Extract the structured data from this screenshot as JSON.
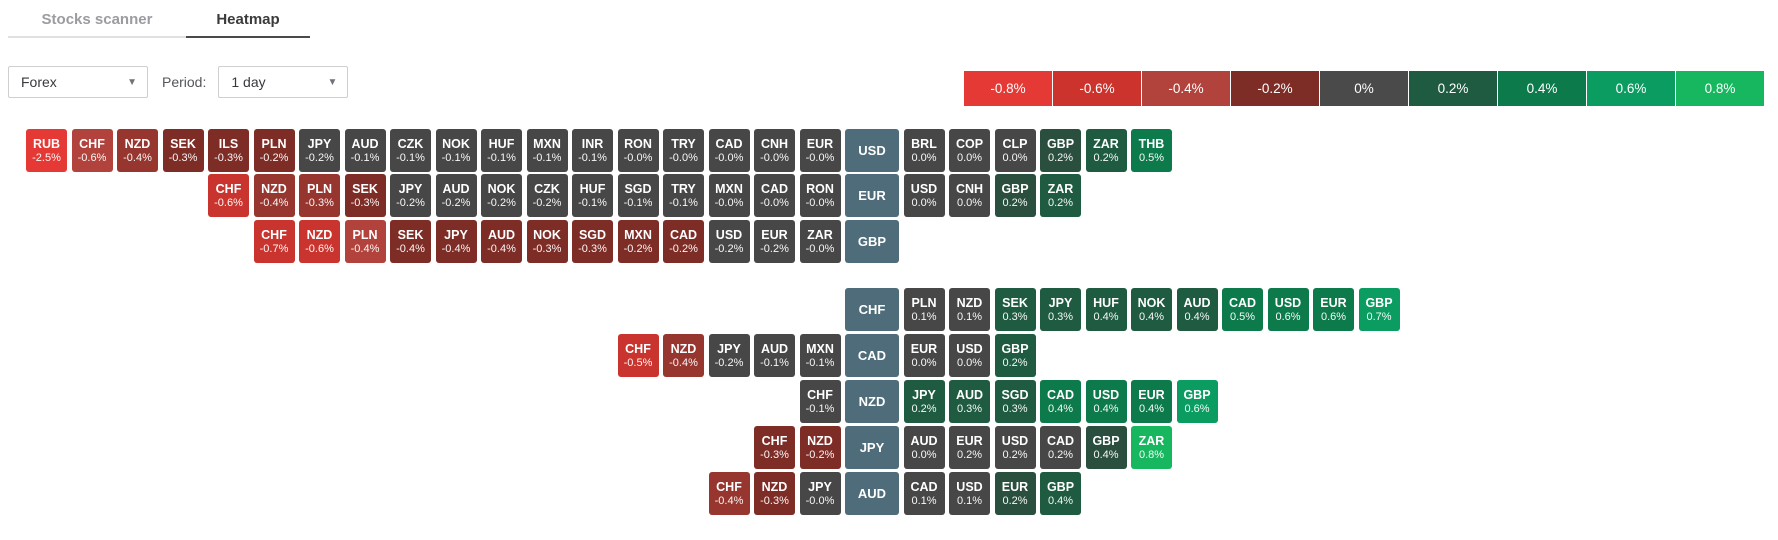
{
  "header": {
    "tabs": [
      {
        "label": "Stocks scanner",
        "active": false
      },
      {
        "label": "Heatmap",
        "active": true
      }
    ]
  },
  "controls": {
    "market_dropdown": {
      "value": "Forex"
    },
    "period_label": "Period:",
    "period_dropdown": {
      "value": "1 day"
    }
  },
  "legend": {
    "items": [
      {
        "label": "-0.8%",
        "color": "#e53935"
      },
      {
        "label": "-0.6%",
        "color": "#cb332c"
      },
      {
        "label": "-0.4%",
        "color": "#b2433c"
      },
      {
        "label": "-0.2%",
        "color": "#7e2c26"
      },
      {
        "label": "0%",
        "color": "#4a4a4a"
      },
      {
        "label": "0.2%",
        "color": "#1e5b41"
      },
      {
        "label": "0.4%",
        "color": "#0c7a4b"
      },
      {
        "label": "0.6%",
        "color": "#0a9c61"
      },
      {
        "label": "0.8%",
        "color": "#16b75e"
      }
    ]
  },
  "heatmap": {
    "base_cell_color": "#4e6c7a",
    "palette": {
      "r4": "#e53935",
      "r3": "#c9352e",
      "r2b": "#b2433c",
      "r2": "#96362f",
      "r1": "#7e2c26",
      "n": "#474747",
      "g1": "#2b4f3e",
      "g2": "#1e5b41",
      "g3": "#0c7a4b",
      "g4": "#0a9c61",
      "g5": "#16b75e"
    },
    "rows": [
      {
        "base": "USD",
        "cells": [
          [
            "RUB",
            "-2.5%",
            "r4"
          ],
          [
            "CHF",
            "-0.6%",
            "r2b"
          ],
          [
            "NZD",
            "-0.4%",
            "r2"
          ],
          [
            "SEK",
            "-0.3%",
            "r1"
          ],
          [
            "ILS",
            "-0.3%",
            "r1"
          ],
          [
            "PLN",
            "-0.2%",
            "r1"
          ],
          [
            "JPY",
            "-0.2%",
            "n"
          ],
          [
            "AUD",
            "-0.1%",
            "n"
          ],
          [
            "CZK",
            "-0.1%",
            "n"
          ],
          [
            "NOK",
            "-0.1%",
            "n"
          ],
          [
            "HUF",
            "-0.1%",
            "n"
          ],
          [
            "MXN",
            "-0.1%",
            "n"
          ],
          [
            "INR",
            "-0.1%",
            "n"
          ],
          [
            "RON",
            "-0.0%",
            "n"
          ],
          [
            "TRY",
            "-0.0%",
            "n"
          ],
          [
            "CAD",
            "-0.0%",
            "n"
          ],
          [
            "CNH",
            "-0.0%",
            "n"
          ],
          [
            "EUR",
            "-0.0%",
            "n"
          ],
          [
            "USD",
            "",
            "base"
          ],
          [
            "BRL",
            "0.0%",
            "n"
          ],
          [
            "COP",
            "0.0%",
            "n"
          ],
          [
            "CLP",
            "0.0%",
            "n"
          ],
          [
            "GBP",
            "0.2%",
            "g1"
          ],
          [
            "ZAR",
            "0.2%",
            "g2"
          ],
          [
            "THB",
            "0.5%",
            "g3"
          ]
        ]
      },
      {
        "base": "EUR",
        "cells": [
          [
            "CHF",
            "-0.6%",
            "r3"
          ],
          [
            "NZD",
            "-0.4%",
            "r2"
          ],
          [
            "PLN",
            "-0.3%",
            "r2"
          ],
          [
            "SEK",
            "-0.3%",
            "r1"
          ],
          [
            "JPY",
            "-0.2%",
            "n"
          ],
          [
            "AUD",
            "-0.2%",
            "n"
          ],
          [
            "NOK",
            "-0.2%",
            "n"
          ],
          [
            "CZK",
            "-0.2%",
            "n"
          ],
          [
            "HUF",
            "-0.1%",
            "n"
          ],
          [
            "SGD",
            "-0.1%",
            "n"
          ],
          [
            "TRY",
            "-0.1%",
            "n"
          ],
          [
            "MXN",
            "-0.0%",
            "n"
          ],
          [
            "CAD",
            "-0.0%",
            "n"
          ],
          [
            "RON",
            "-0.0%",
            "n"
          ],
          [
            "EUR",
            "",
            "base"
          ],
          [
            "USD",
            "0.0%",
            "n"
          ],
          [
            "CNH",
            "0.0%",
            "n"
          ],
          [
            "GBP",
            "0.2%",
            "g1"
          ],
          [
            "ZAR",
            "0.2%",
            "g2"
          ]
        ]
      },
      {
        "base": "GBP",
        "cells": [
          [
            "CHF",
            "-0.7%",
            "r3"
          ],
          [
            "NZD",
            "-0.6%",
            "r3"
          ],
          [
            "PLN",
            "-0.4%",
            "r2b"
          ],
          [
            "SEK",
            "-0.4%",
            "r1"
          ],
          [
            "JPY",
            "-0.4%",
            "r1"
          ],
          [
            "AUD",
            "-0.4%",
            "r1"
          ],
          [
            "NOK",
            "-0.3%",
            "r1"
          ],
          [
            "SGD",
            "-0.3%",
            "r1"
          ],
          [
            "MXN",
            "-0.2%",
            "r1"
          ],
          [
            "CAD",
            "-0.2%",
            "r1"
          ],
          [
            "USD",
            "-0.2%",
            "n"
          ],
          [
            "EUR",
            "-0.2%",
            "n"
          ],
          [
            "ZAR",
            "-0.0%",
            "n"
          ],
          [
            "GBP",
            "",
            "base"
          ]
        ]
      },
      {
        "base": "CHF",
        "cells": [
          [
            "CHF",
            "",
            "base"
          ],
          [
            "PLN",
            "0.1%",
            "n"
          ],
          [
            "NZD",
            "0.1%",
            "n"
          ],
          [
            "SEK",
            "0.3%",
            "g2"
          ],
          [
            "JPY",
            "0.3%",
            "g2"
          ],
          [
            "HUF",
            "0.4%",
            "g2"
          ],
          [
            "NOK",
            "0.4%",
            "g2"
          ],
          [
            "AUD",
            "0.4%",
            "g2"
          ],
          [
            "CAD",
            "0.5%",
            "g3"
          ],
          [
            "USD",
            "0.6%",
            "g3"
          ],
          [
            "EUR",
            "0.6%",
            "g3"
          ],
          [
            "GBP",
            "0.7%",
            "g4"
          ]
        ]
      },
      {
        "base": "CAD",
        "cells": [
          [
            "CHF",
            "-0.5%",
            "r3"
          ],
          [
            "NZD",
            "-0.4%",
            "r2"
          ],
          [
            "JPY",
            "-0.2%",
            "n"
          ],
          [
            "AUD",
            "-0.1%",
            "n"
          ],
          [
            "MXN",
            "-0.1%",
            "n"
          ],
          [
            "CAD",
            "",
            "base"
          ],
          [
            "EUR",
            "0.0%",
            "n"
          ],
          [
            "USD",
            "0.0%",
            "n"
          ],
          [
            "GBP",
            "0.2%",
            "g2"
          ]
        ]
      },
      {
        "base": "NZD",
        "cells": [
          [
            "CHF",
            "-0.1%",
            "n"
          ],
          [
            "NZD",
            "",
            "base"
          ],
          [
            "JPY",
            "0.2%",
            "g2"
          ],
          [
            "AUD",
            "0.3%",
            "g2"
          ],
          [
            "SGD",
            "0.3%",
            "g2"
          ],
          [
            "CAD",
            "0.4%",
            "g3"
          ],
          [
            "USD",
            "0.4%",
            "g3"
          ],
          [
            "EUR",
            "0.4%",
            "g3"
          ],
          [
            "GBP",
            "0.6%",
            "g4"
          ]
        ]
      },
      {
        "base": "JPY",
        "cells": [
          [
            "CHF",
            "-0.3%",
            "r1"
          ],
          [
            "NZD",
            "-0.2%",
            "r1"
          ],
          [
            "JPY",
            "",
            "base"
          ],
          [
            "AUD",
            "0.0%",
            "n"
          ],
          [
            "EUR",
            "0.2%",
            "n"
          ],
          [
            "USD",
            "0.2%",
            "n"
          ],
          [
            "CAD",
            "0.2%",
            "n"
          ],
          [
            "GBP",
            "0.4%",
            "g1"
          ],
          [
            "ZAR",
            "0.8%",
            "g5"
          ]
        ]
      },
      {
        "base": "AUD",
        "cells": [
          [
            "CHF",
            "-0.4%",
            "r2"
          ],
          [
            "NZD",
            "-0.3%",
            "r1"
          ],
          [
            "JPY",
            "-0.0%",
            "n"
          ],
          [
            "AUD",
            "",
            "base"
          ],
          [
            "CAD",
            "0.1%",
            "n"
          ],
          [
            "USD",
            "0.1%",
            "n"
          ],
          [
            "EUR",
            "0.2%",
            "g1"
          ],
          [
            "GBP",
            "0.4%",
            "g2"
          ]
        ]
      }
    ]
  }
}
